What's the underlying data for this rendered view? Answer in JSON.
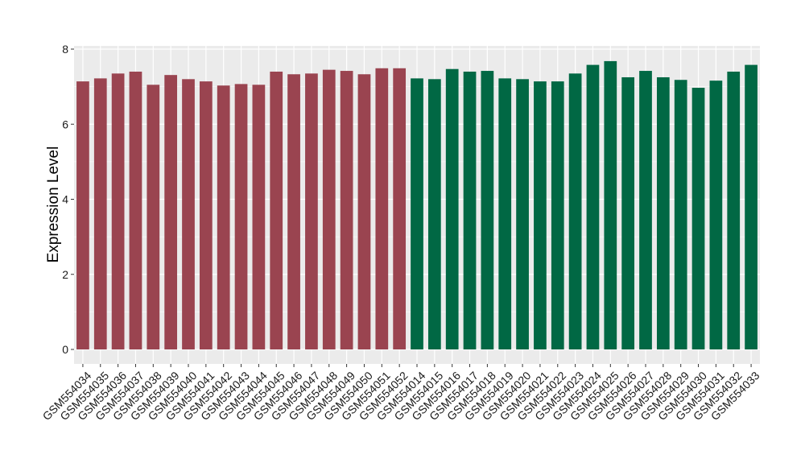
{
  "chart_data": {
    "type": "bar",
    "title": "",
    "xlabel": "",
    "ylabel": "Expression Level",
    "ylim": [
      0,
      8
    ],
    "yticks": [
      0,
      2,
      4,
      6,
      8
    ],
    "grid": true,
    "legend": "none",
    "categories": [
      "GSM554034",
      "GSM554035",
      "GSM554036",
      "GSM554037",
      "GSM554038",
      "GSM554039",
      "GSM554040",
      "GSM554041",
      "GSM554042",
      "GSM554043",
      "GSM554044",
      "GSM554045",
      "GSM554046",
      "GSM554047",
      "GSM554048",
      "GSM554049",
      "GSM554050",
      "GSM554051",
      "GSM554052",
      "GSM554014",
      "GSM554015",
      "GSM554016",
      "GSM554017",
      "GSM554018",
      "GSM554019",
      "GSM554020",
      "GSM554021",
      "GSM554022",
      "GSM554023",
      "GSM554024",
      "GSM554025",
      "GSM554026",
      "GSM554027",
      "GSM554028",
      "GSM554029",
      "GSM554030",
      "GSM554031",
      "GSM554032",
      "GSM554033"
    ],
    "values": [
      7.14,
      7.22,
      7.35,
      7.4,
      7.05,
      7.31,
      7.2,
      7.14,
      7.03,
      7.07,
      7.05,
      7.4,
      7.33,
      7.35,
      7.45,
      7.42,
      7.33,
      7.49,
      7.49,
      7.22,
      7.2,
      7.47,
      7.4,
      7.42,
      7.22,
      7.2,
      7.14,
      7.14,
      7.35,
      7.58,
      7.68,
      7.25,
      7.42,
      7.25,
      7.18,
      6.97,
      7.16,
      7.4,
      7.58
    ],
    "group_sizes": [
      19,
      20
    ],
    "colors": [
      "#9a4450",
      "#016844"
    ],
    "panel_background": "#ebebeb",
    "grid_color": "#ffffff"
  }
}
